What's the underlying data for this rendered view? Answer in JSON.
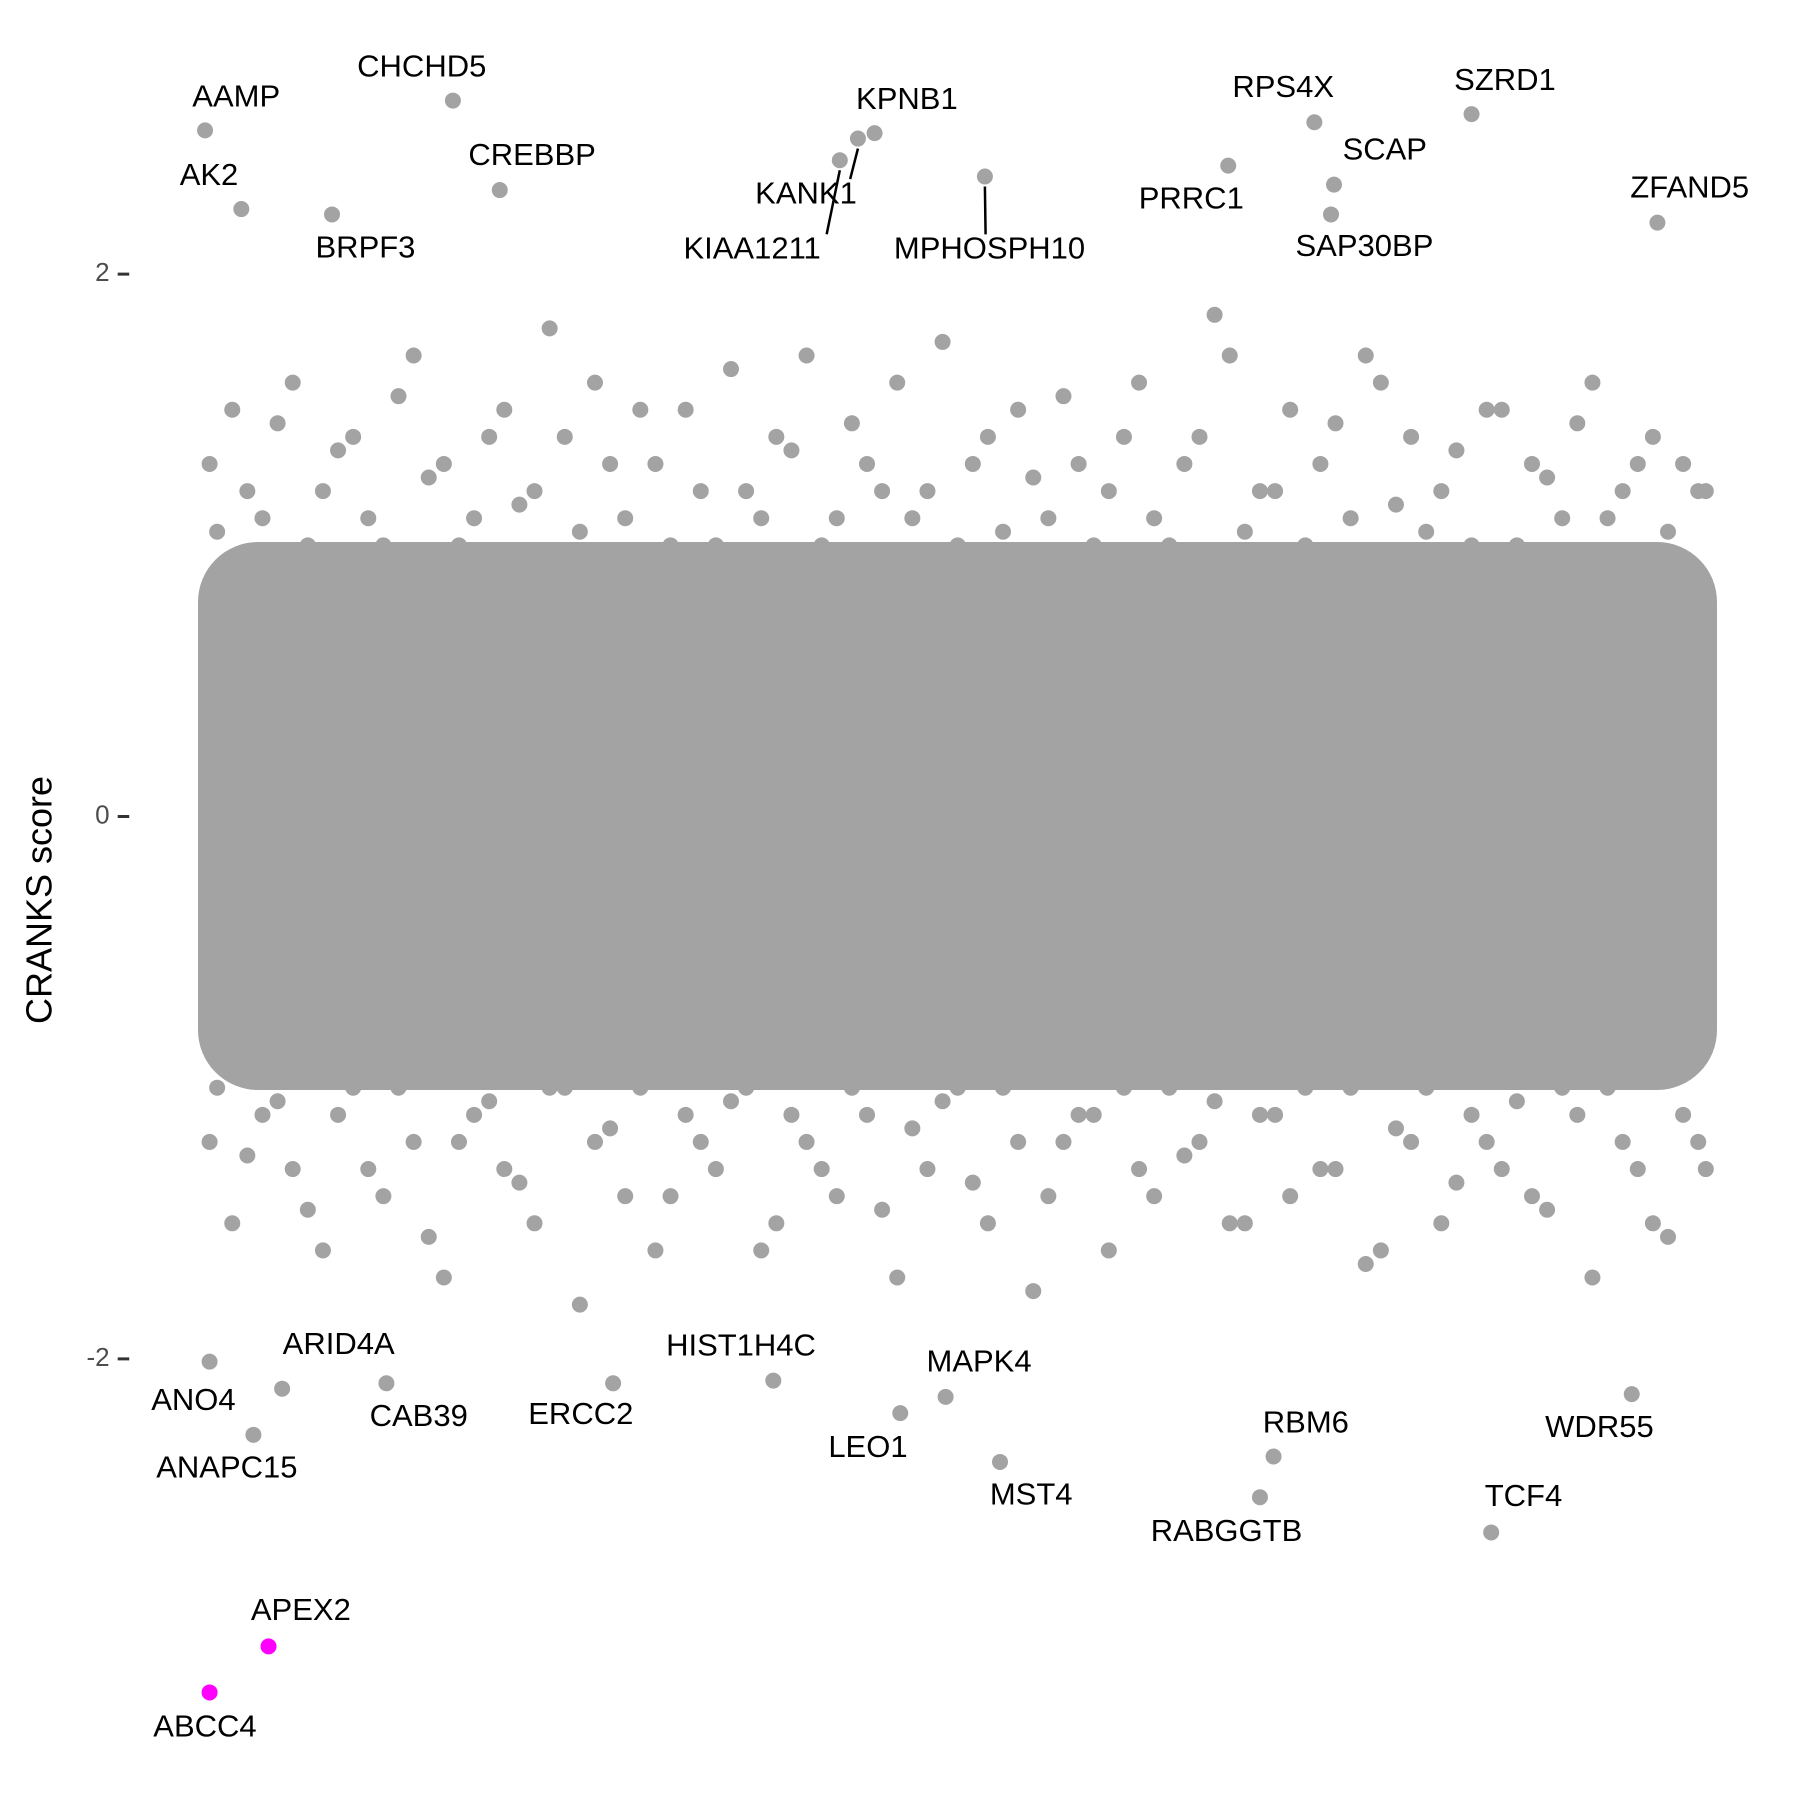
{
  "chart_data": {
    "type": "scatter",
    "y_label": "CRANKS score",
    "xlim": [
      -1,
      101
    ],
    "ylim": [
      -3.55,
      2.93
    ],
    "yticks": [
      -2,
      0,
      2
    ],
    "series": [
      {
        "color": "#a3a3a3",
        "x": [
          0.5,
          2,
          4,
          6,
          8,
          10,
          12,
          14,
          16,
          18,
          20,
          22,
          24,
          26,
          28,
          30,
          32,
          34,
          36,
          38,
          40,
          42,
          44,
          46,
          48,
          50,
          52,
          54,
          56,
          58,
          60,
          62,
          64,
          66,
          68,
          70,
          72,
          74,
          76,
          78,
          80,
          82,
          84,
          86,
          88,
          90,
          92,
          94,
          96,
          98,
          99.5,
          1,
          3,
          5,
          7,
          9,
          11,
          13,
          15,
          17,
          19,
          21,
          23,
          25,
          27,
          29,
          31,
          33,
          35,
          37,
          39,
          41,
          43,
          45,
          47,
          49,
          51,
          53,
          55,
          57,
          59,
          61,
          63,
          65,
          67,
          69,
          71,
          73,
          75,
          77,
          79,
          81,
          83,
          85,
          87,
          89,
          91,
          93,
          95,
          97,
          99,
          0.5,
          2,
          4,
          6,
          8,
          10,
          12,
          14,
          16,
          18,
          20,
          22,
          24,
          26,
          28,
          30,
          32,
          34,
          36,
          38,
          40,
          42,
          44,
          46,
          48,
          50,
          52,
          54,
          56,
          58,
          60,
          62,
          64,
          66,
          68,
          70,
          72,
          74,
          76,
          78,
          80,
          82,
          84,
          86,
          88,
          90,
          92,
          94,
          96,
          98,
          99.5,
          1,
          3,
          5,
          7,
          9,
          11,
          13,
          15,
          17,
          19,
          21,
          23,
          25,
          27,
          29,
          31,
          33,
          35,
          37,
          39,
          41,
          43,
          45,
          47,
          49,
          51,
          53,
          55,
          57,
          59,
          61,
          63,
          65,
          67,
          69,
          71,
          73,
          75,
          77,
          79,
          81,
          83,
          85,
          87,
          89,
          91,
          93,
          95,
          97,
          99
        ],
        "y": [
          1.3,
          1.5,
          1.1,
          1.6,
          1.2,
          1.4,
          1.0,
          1.7,
          1.3,
          1.1,
          1.5,
          1.2,
          1.4,
          1.6,
          1.1,
          1.3,
          1.5,
          1.0,
          1.2,
          1.4,
          1.7,
          1.1,
          1.3,
          1.6,
          1.2,
          1.0,
          1.4,
          1.5,
          1.1,
          1.3,
          1.2,
          1.6,
          1.0,
          1.4,
          1.7,
          1.2,
          1.5,
          1.3,
          1.1,
          1.6,
          1.4,
          1.2,
          1.0,
          1.5,
          1.3,
          1.1,
          1.6,
          1.2,
          1.4,
          1.3,
          1.2,
          1.05,
          1.2,
          1.45,
          1.0,
          1.35,
          1.1,
          1.55,
          1.25,
          1.0,
          1.4,
          1.15,
          1.8,
          1.05,
          1.3,
          1.5,
          1.0,
          1.2,
          1.65,
          1.1,
          1.35,
          1.0,
          1.45,
          1.2,
          1.1,
          1.75,
          1.3,
          1.05,
          1.25,
          1.55,
          1.0,
          1.4,
          1.1,
          1.3,
          1.85,
          1.05,
          1.2,
          1.0,
          1.45,
          1.7,
          1.15,
          1.05,
          1.35,
          1.5,
          1.0,
          1.25,
          1.45,
          1.1,
          1.3,
          1.05,
          1.2,
          -1.2,
          -1.5,
          -1.1,
          -1.3,
          -1.6,
          -1.0,
          -1.4,
          -1.2,
          -1.7,
          -1.1,
          -1.3,
          -1.5,
          -1.0,
          -1.2,
          -1.4,
          -1.6,
          -1.1,
          -1.3,
          -1.0,
          -1.5,
          -1.2,
          -1.4,
          -1.1,
          -1.7,
          -1.3,
          -1.0,
          -1.5,
          -1.2,
          -1.4,
          -1.1,
          -1.6,
          -1.3,
          -1.0,
          -1.2,
          -1.5,
          -1.1,
          -1.4,
          -1.3,
          -1.0,
          -1.6,
          -1.2,
          -1.5,
          -1.1,
          -1.3,
          -1.4,
          -1.0,
          -1.7,
          -1.2,
          -1.5,
          -1.1,
          -1.3,
          -1.0,
          -1.25,
          -1.05,
          -1.45,
          -1.1,
          -1.3,
          -1.0,
          -1.55,
          -1.2,
          -1.05,
          -1.35,
          -1.0,
          -1.8,
          -1.15,
          -1.0,
          -1.4,
          -1.2,
          -1.05,
          -1.6,
          -1.1,
          -1.3,
          -1.0,
          -1.45,
          -1.15,
          -1.05,
          -1.35,
          -1.0,
          -1.75,
          -1.2,
          -1.1,
          -1.0,
          -1.4,
          -1.25,
          -1.05,
          -1.5,
          -1.1,
          -1.0,
          -1.3,
          -1.65,
          -1.15,
          -1.0,
          -1.35,
          -1.2,
          -1.05,
          -1.45,
          -1.1,
          -1.0,
          -1.3,
          -1.55,
          -1.2
        ]
      },
      {
        "color": "#a3a3a3",
        "labels": [
          "AAMP",
          "AK2",
          "CHCHD5",
          "CREBBP",
          "BRPF3",
          "KPNB1",
          "KANK1",
          "KIAA1211",
          "MPHOSPH10",
          "PRRC1",
          "RPS4X",
          "SZRD1",
          "SCAP",
          "SAP30BP",
          "ZFAND5",
          "ANO4",
          "ANAPC15",
          "ARID4A",
          "CAB39",
          "ERCC2",
          "HIST1H4C",
          "LEO1",
          "MAPK4",
          "MST4",
          "RBM6",
          "RABGGTB",
          "TCF4",
          "WDR55"
        ],
        "x": [
          0.2,
          2.6,
          16.6,
          19.7,
          8.6,
          44.5,
          43.4,
          42.2,
          51.8,
          67.9,
          73.6,
          84.0,
          74.9,
          74.7,
          96.3,
          0.5,
          3.4,
          5.3,
          12.2,
          27.2,
          37.8,
          46.2,
          49.2,
          52.8,
          70.9,
          70.0,
          85.3,
          94.6
        ],
        "y": [
          2.53,
          2.24,
          2.64,
          2.31,
          2.22,
          2.52,
          2.5,
          2.42,
          2.36,
          2.4,
          2.56,
          2.59,
          2.33,
          2.22,
          2.19,
          -2.01,
          -2.28,
          -2.11,
          -2.09,
          -2.09,
          -2.08,
          -2.2,
          -2.14,
          -2.38,
          -2.36,
          -2.51,
          -2.64,
          -2.13
        ]
      },
      {
        "color": "#ff00ff",
        "labels": [
          "APEX2",
          "ABCC4"
        ],
        "x": [
          4.4,
          0.5
        ],
        "y": [
          -3.06,
          -3.23
        ]
      }
    ]
  }
}
